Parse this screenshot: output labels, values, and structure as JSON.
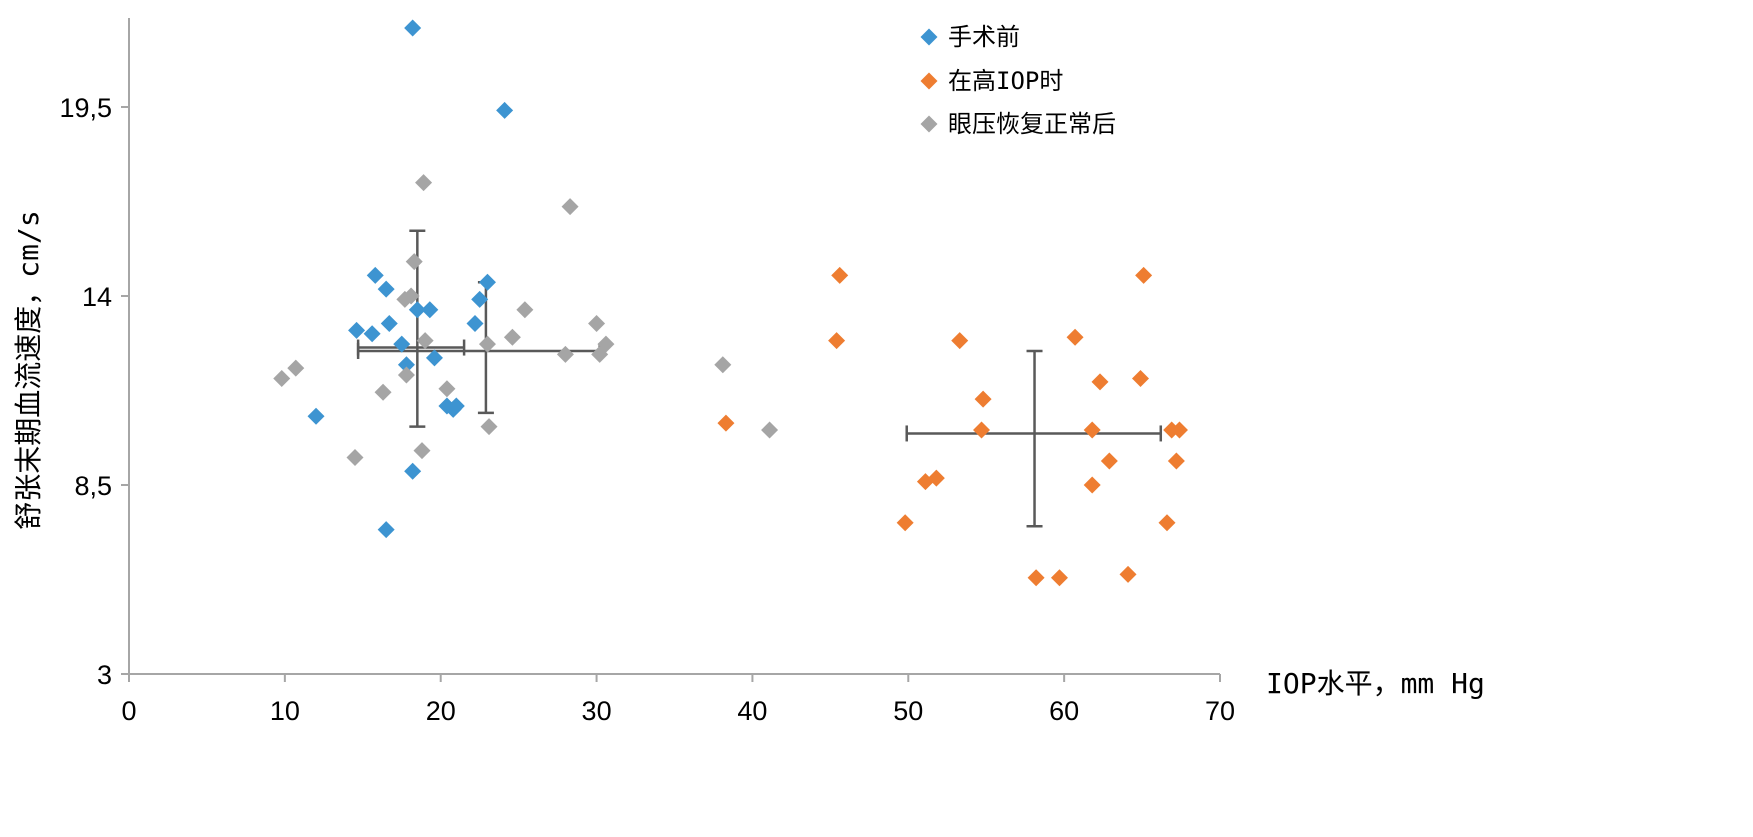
{
  "chart_data": {
    "type": "scatter",
    "xlabel": "IOP水平，mm Hg",
    "ylabel": "舒张末期血流速度，cm/s",
    "xlim": [
      0,
      70
    ],
    "ylim": [
      3,
      22
    ],
    "xticks": [
      0,
      10,
      20,
      30,
      40,
      50,
      60,
      70
    ],
    "yticks": [
      3,
      8.5,
      14,
      19.5
    ],
    "xtick_labels": [
      "0",
      "10",
      "20",
      "30",
      "40",
      "50",
      "60",
      "70"
    ],
    "ytick_labels": [
      "3",
      "8,5",
      "14",
      "19,5"
    ],
    "grid": false,
    "legend": {
      "placement": "top-right"
    },
    "series": [
      {
        "name": "手术前",
        "marker": "diamond",
        "color": "#3d94d1",
        "points": [
          [
            18.2,
            21.8
          ],
          [
            24.1,
            19.4
          ],
          [
            15.8,
            14.6
          ],
          [
            16.5,
            14.2
          ],
          [
            23.0,
            14.4
          ],
          [
            22.5,
            13.9
          ],
          [
            18.5,
            13.6
          ],
          [
            19.3,
            13.6
          ],
          [
            16.7,
            13.2
          ],
          [
            22.2,
            13.2
          ],
          [
            14.6,
            13.0
          ],
          [
            15.6,
            12.9
          ],
          [
            17.5,
            12.6
          ],
          [
            19.6,
            12.2
          ],
          [
            17.8,
            12.0
          ],
          [
            20.4,
            10.8
          ],
          [
            21.0,
            10.8
          ],
          [
            20.8,
            10.7
          ],
          [
            12.0,
            10.5
          ],
          [
            18.2,
            8.9
          ],
          [
            16.5,
            7.2
          ]
        ]
      },
      {
        "name": "在高IOP时",
        "marker": "diamond",
        "color": "#ee7d31",
        "points": [
          [
            45.6,
            14.6
          ],
          [
            65.1,
            14.6
          ],
          [
            45.4,
            12.7
          ],
          [
            53.3,
            12.7
          ],
          [
            60.7,
            12.8
          ],
          [
            64.9,
            11.6
          ],
          [
            62.3,
            11.5
          ],
          [
            54.8,
            11.0
          ],
          [
            38.3,
            10.3
          ],
          [
            54.7,
            10.1
          ],
          [
            61.8,
            10.1
          ],
          [
            66.9,
            10.1
          ],
          [
            67.4,
            10.1
          ],
          [
            62.9,
            9.2
          ],
          [
            67.2,
            9.2
          ],
          [
            51.1,
            8.6
          ],
          [
            51.8,
            8.7
          ],
          [
            61.8,
            8.5
          ],
          [
            49.8,
            7.4
          ],
          [
            66.6,
            7.4
          ],
          [
            58.2,
            5.8
          ],
          [
            59.7,
            5.8
          ],
          [
            64.1,
            5.9
          ]
        ]
      },
      {
        "name": "眼压恢复正常后",
        "marker": "diamond",
        "color": "#a5a5a5",
        "points": [
          [
            18.9,
            17.3
          ],
          [
            28.3,
            16.6
          ],
          [
            18.3,
            15.0
          ],
          [
            18.1,
            14.0
          ],
          [
            17.7,
            13.9
          ],
          [
            25.4,
            13.6
          ],
          [
            30.0,
            13.2
          ],
          [
            24.6,
            12.8
          ],
          [
            19.0,
            12.7
          ],
          [
            23.0,
            12.6
          ],
          [
            30.6,
            12.6
          ],
          [
            28.0,
            12.3
          ],
          [
            30.2,
            12.3
          ],
          [
            10.7,
            11.9
          ],
          [
            9.8,
            11.6
          ],
          [
            17.8,
            11.7
          ],
          [
            38.1,
            12.0
          ],
          [
            20.4,
            11.3
          ],
          [
            16.3,
            11.2
          ],
          [
            41.1,
            10.1
          ],
          [
            23.1,
            10.2
          ],
          [
            18.8,
            9.5
          ],
          [
            14.5,
            9.3
          ]
        ]
      }
    ],
    "error_bars": [
      {
        "x": 18.5,
        "y": 12.5,
        "x_low": 14.7,
        "x_high": 21.5,
        "y_low": 10.2,
        "y_high": 15.9
      },
      {
        "x": 22.9,
        "y": 12.4,
        "x_low": 14.7,
        "x_high": 30.2,
        "y_low": 10.6,
        "y_high": 14.4
      },
      {
        "x": 58.1,
        "y": 10.0,
        "x_low": 49.9,
        "x_high": 66.2,
        "y_low": 7.3,
        "y_high": 12.4
      }
    ]
  }
}
